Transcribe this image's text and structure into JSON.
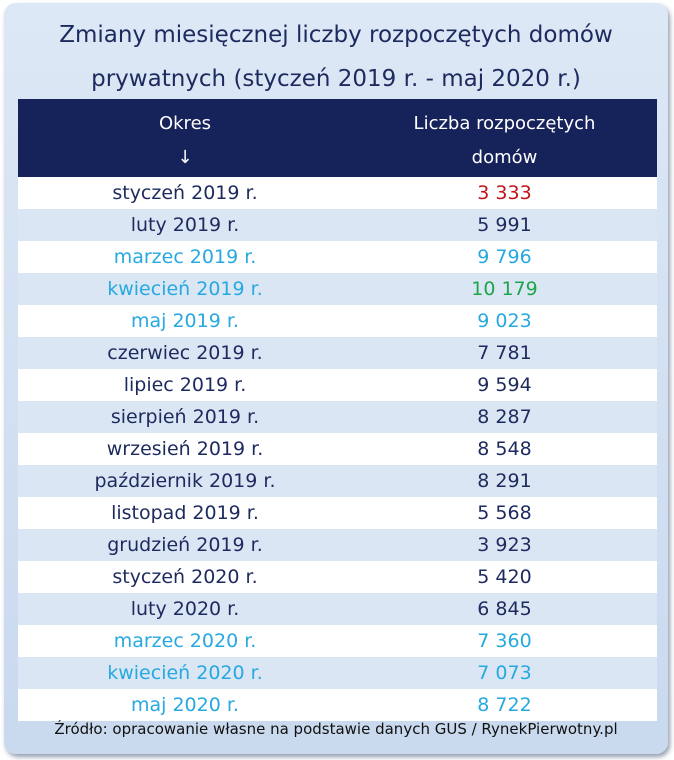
{
  "title_line1": "Zmiany miesięcznej liczby rozpoczętych domów",
  "title_line2": "prywatnych (styczeń 2019 r. - maj 2020 r.)",
  "header": {
    "col1": "Okres",
    "col1_arrow": "↓",
    "col2_line1": "Liczba rozpoczętych",
    "col2_line2": "domów"
  },
  "source": "Źródło: opracowanie własne na podstawie danych GUS / RynekPierwotny.pl",
  "colors": {
    "dark": "#1d2a5e",
    "cyan": "#26a9e0",
    "red": "#c0151b",
    "green": "#1ea54a"
  },
  "chart_data": {
    "type": "table",
    "title": "Zmiany miesięcznej liczby rozpoczętych domów prywatnych (styczeń 2019 r. - maj 2020 r.)",
    "columns": [
      "Okres",
      "Liczba rozpoczętych domów"
    ],
    "rows": [
      {
        "period": "styczeń 2019 r.",
        "value": "3 333",
        "period_color": "dark",
        "value_color": "red"
      },
      {
        "period": "luty 2019 r.",
        "value": "5 991",
        "period_color": "dark",
        "value_color": "dark"
      },
      {
        "period": "marzec 2019 r.",
        "value": "9 796",
        "period_color": "cyan",
        "value_color": "cyan"
      },
      {
        "period": "kwiecień 2019 r.",
        "value": "10 179",
        "period_color": "cyan",
        "value_color": "green"
      },
      {
        "period": "maj 2019 r.",
        "value": "9 023",
        "period_color": "cyan",
        "value_color": "cyan"
      },
      {
        "period": "czerwiec 2019 r.",
        "value": "7 781",
        "period_color": "dark",
        "value_color": "dark"
      },
      {
        "period": "lipiec 2019 r.",
        "value": "9 594",
        "period_color": "dark",
        "value_color": "dark"
      },
      {
        "period": "sierpień 2019 r.",
        "value": "8 287",
        "period_color": "dark",
        "value_color": "dark"
      },
      {
        "period": "wrzesień 2019 r.",
        "value": "8 548",
        "period_color": "dark",
        "value_color": "dark"
      },
      {
        "period": "październik 2019 r.",
        "value": "8 291",
        "period_color": "dark",
        "value_color": "dark"
      },
      {
        "period": "listopad 2019 r.",
        "value": "5 568",
        "period_color": "dark",
        "value_color": "dark"
      },
      {
        "period": "grudzień 2019 r.",
        "value": "3 923",
        "period_color": "dark",
        "value_color": "dark"
      },
      {
        "period": "styczeń 2020 r.",
        "value": "5 420",
        "period_color": "dark",
        "value_color": "dark"
      },
      {
        "period": "luty 2020 r.",
        "value": "6 845",
        "period_color": "dark",
        "value_color": "dark"
      },
      {
        "period": "marzec 2020 r.",
        "value": "7 360",
        "period_color": "cyan",
        "value_color": "cyan"
      },
      {
        "period": "kwiecień 2020 r.",
        "value": "7 073",
        "period_color": "cyan",
        "value_color": "cyan"
      },
      {
        "period": "maj 2020 r.",
        "value": "8 722",
        "period_color": "cyan",
        "value_color": "cyan"
      }
    ]
  }
}
